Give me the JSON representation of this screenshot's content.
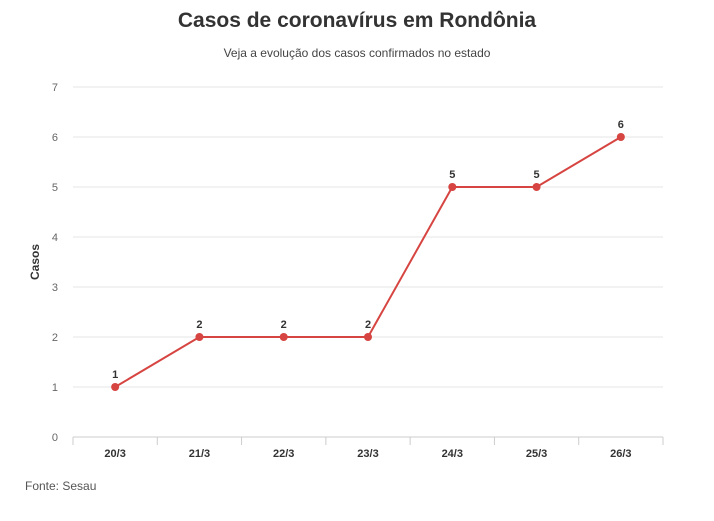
{
  "chart_data": {
    "type": "line",
    "title": "Casos de coronavírus em Rondônia",
    "subtitle": "Veja a evolução dos casos confirmados no estado",
    "ylabel": "Casos",
    "xlabel": "",
    "categories": [
      "20/3",
      "21/3",
      "22/3",
      "23/3",
      "24/3",
      "25/3",
      "26/3"
    ],
    "series": [
      {
        "values": [
          1,
          2,
          2,
          2,
          5,
          5,
          6
        ]
      }
    ],
    "ylim": [
      0,
      7
    ],
    "yticks": [
      "0",
      "1",
      "2",
      "3",
      "4",
      "5",
      "6",
      "7"
    ],
    "grid": true,
    "color": "#d64541",
    "source": "Fonte: Sesau"
  }
}
